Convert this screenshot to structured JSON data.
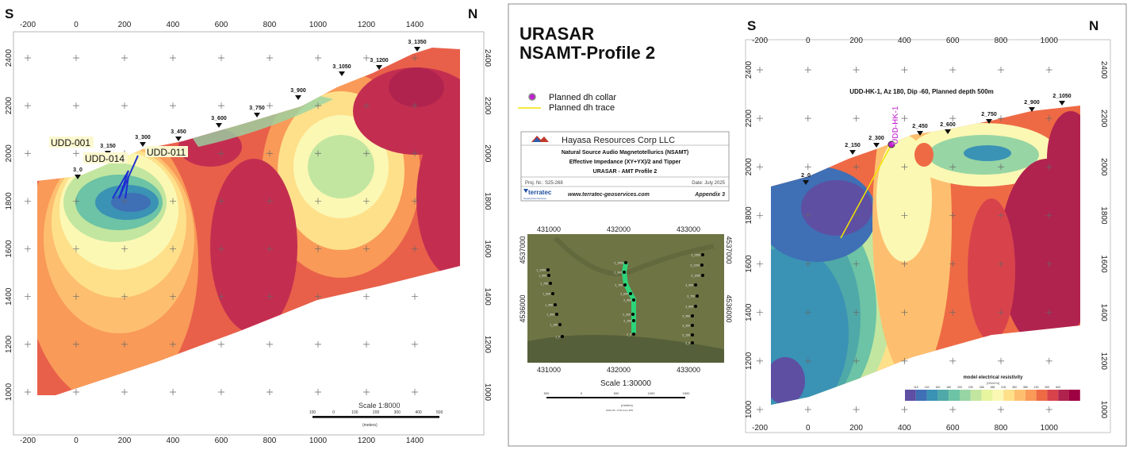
{
  "left_section": {
    "south_label": "S",
    "north_label": "N",
    "x_ticks": [
      "-200",
      "0",
      "200",
      "400",
      "600",
      "800",
      "1000",
      "1200",
      "1400"
    ],
    "y_ticks": [
      "2400",
      "2200",
      "2000",
      "1800",
      "1600",
      "1400",
      "1200",
      "1000"
    ],
    "stations": [
      "3_0",
      "3_150",
      "3_300",
      "3_450",
      "3_600",
      "3_750",
      "3_900",
      "3_1050",
      "3_1200",
      "3_1350"
    ],
    "drillholes": [
      "UDD-001",
      "UDD-014",
      "UDD-011"
    ],
    "drill_color": "#1f2fd0",
    "scale_label": "Scale 1:8000",
    "scale_ticks": [
      "100",
      "0",
      "100",
      "200",
      "300",
      "400",
      "500"
    ],
    "scale_unit": "(meters)"
  },
  "center_panel": {
    "title_line1": "URASAR",
    "title_line2": "NSAMT-Profile 2",
    "legend": [
      {
        "label": "Planned dh collar",
        "color": "#c020d0"
      },
      {
        "label": "Planned dh trace",
        "color": "#f2e600"
      }
    ],
    "title_block": {
      "company": "Hayasa Resources Corp LLC",
      "line1": "Natural Source Audio Magnetotellurics (NSAMT)",
      "line2": "Effective Impedance (XY+YX)/2 and Tipper",
      "line3": "URASAR - AMT Profile 2",
      "project": "Proj. Nr.: S25-268",
      "date": "Date: July 2025",
      "contractor": "terratec",
      "contractor_sub": "Geophysical Services",
      "website": "www.terratec-geoservices.com",
      "appendix": "Appendix 3"
    },
    "map": {
      "x_ticks": [
        "431000",
        "432000",
        "433000"
      ],
      "y_ticks": [
        "4537000",
        "4536000"
      ],
      "line1_stations": [
        "1_1050",
        "1_900",
        "1_750",
        "1_600",
        "1_450",
        "1_300",
        "1_150",
        "1_0"
      ],
      "line2_stations": [
        "2_1050",
        "2_900",
        "2_750",
        "2_600",
        "2_450",
        "2_300",
        "2_150",
        "2_0"
      ],
      "line3_stations": [
        "3_1350",
        "3_1200",
        "3_1050",
        "3_900",
        "3_750",
        "3_600",
        "3_450",
        "3_300",
        "3_150",
        "3_0"
      ],
      "highlight_color": "#2ed47a",
      "scale_label": "Scale 1:30000",
      "scale_ticks": [
        "500",
        "0",
        "500",
        "1000",
        "1500"
      ],
      "scale_unit": "(meters)",
      "projection": "WGS 84 / UTM zone 38N"
    }
  },
  "right_section": {
    "south_label": "S",
    "north_label": "N",
    "x_ticks": [
      "-200",
      "0",
      "200",
      "400",
      "600",
      "800",
      "1000"
    ],
    "y_ticks": [
      "2400",
      "2200",
      "2000",
      "1800",
      "1600",
      "1400",
      "1200",
      "1000"
    ],
    "stations": [
      "2_0",
      "2_150",
      "2_300",
      "2_450",
      "2_600",
      "2_750",
      "2_900",
      "2_1050"
    ],
    "planned_hole_label": "UDD-HK-1",
    "planned_hole_annotation": "UDD-HK-1, Az 180, Dip -60, Planned depth 500m",
    "colorbar": {
      "title": "model electrical resistivity",
      "unit": "[Ohm*m]",
      "ticks": [
        "115",
        "140",
        "160",
        "180",
        "200",
        "230",
        "268",
        "288",
        "315",
        "350",
        "385",
        "430",
        "500",
        "600"
      ],
      "colors": [
        "#5e4fa2",
        "#3f6fb5",
        "#3a92b5",
        "#4fa9a8",
        "#6cc3a5",
        "#98d5a4",
        "#c2e6a0",
        "#e6f59e",
        "#fbf8b4",
        "#fee08b",
        "#fdbf6f",
        "#f99a58",
        "#ee6a45",
        "#d8434b",
        "#b0234f",
        "#9e0142"
      ]
    }
  }
}
